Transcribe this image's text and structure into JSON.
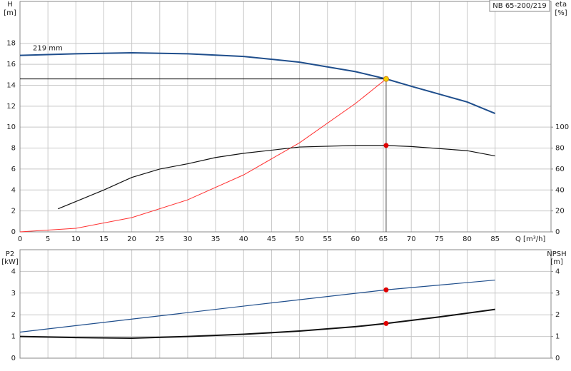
{
  "chart_data": [
    {
      "type": "line",
      "title": "NB 65-200/219",
      "y_label": "H",
      "y_unit": "[m]",
      "y2_label": "eta",
      "y2_unit": "[%]",
      "x_label": "Q [m³/h]",
      "xlim": [
        0,
        95
      ],
      "xticks": [
        0,
        5,
        10,
        15,
        20,
        25,
        30,
        35,
        40,
        45,
        50,
        55,
        60,
        65,
        70,
        75,
        80,
        85
      ],
      "ylim": [
        0,
        22
      ],
      "yticks": [
        0,
        2,
        4,
        6,
        8,
        10,
        12,
        14,
        16,
        18
      ],
      "y2lim": [
        0,
        220
      ],
      "y2ticks": [
        0,
        20,
        40,
        60,
        80,
        100
      ],
      "grid": true,
      "show_xtick_labels": true,
      "series": [
        {
          "name": "219 mm",
          "color": "#1f4e8c",
          "width": 2,
          "axis": "y",
          "x": [
            0,
            10,
            20,
            30,
            40,
            50,
            60,
            65.5,
            70,
            80,
            85
          ],
          "values": [
            16.85,
            17.0,
            17.1,
            17.0,
            16.75,
            16.2,
            15.3,
            14.6,
            13.9,
            12.4,
            11.3
          ]
        },
        {
          "color": "#ff3030",
          "width": 1,
          "axis": "y",
          "x": [
            0,
            10,
            20,
            30,
            40,
            50,
            60,
            65.5
          ],
          "values": [
            0,
            0.34,
            1.36,
            3.06,
            5.44,
            8.5,
            12.25,
            14.6
          ]
        },
        {
          "color": "#111111",
          "width": 1.2,
          "axis": "y2",
          "x": [
            6.8,
            10,
            15,
            20,
            25,
            30,
            35,
            40,
            50,
            60,
            65.5,
            70,
            80,
            85
          ],
          "values": [
            22,
            29,
            40,
            52,
            60,
            65,
            71,
            75,
            81,
            82.5,
            82.5,
            81.5,
            77.5,
            72.5
          ]
        }
      ],
      "points": [
        {
          "x": 65.5,
          "y": 14.6,
          "color": "#f5d000",
          "axis": "y",
          "duty_lines": true
        },
        {
          "x": 65.5,
          "y": 82.5,
          "color": "#e00000",
          "axis": "y2"
        }
      ]
    },
    {
      "type": "line",
      "y_label": "P2",
      "y_unit": "[kW]",
      "y2_label": "NPSH",
      "y2_unit": "[m]",
      "xlim": [
        0,
        95
      ],
      "xticks": [
        0,
        5,
        10,
        15,
        20,
        25,
        30,
        35,
        40,
        45,
        50,
        55,
        60,
        65,
        70,
        75,
        80,
        85
      ],
      "ylim": [
        0,
        5
      ],
      "yticks": [
        0,
        1,
        2,
        3,
        4
      ],
      "y2lim": [
        0,
        5
      ],
      "y2ticks": [
        0,
        1,
        2,
        3,
        4
      ],
      "grid": true,
      "show_xtick_labels": false,
      "series": [
        {
          "color": "#1f4e8c",
          "width": 1.2,
          "axis": "y",
          "x": [
            0,
            20,
            40,
            65.5,
            85
          ],
          "values": [
            1.2,
            1.8,
            2.4,
            3.15,
            3.6
          ]
        },
        {
          "color": "#111111",
          "width": 2,
          "axis": "y2",
          "x": [
            0,
            10,
            20,
            30,
            40,
            50,
            60,
            65.5,
            75,
            85
          ],
          "values": [
            1.0,
            0.95,
            0.92,
            1.0,
            1.1,
            1.25,
            1.45,
            1.6,
            1.9,
            2.25
          ]
        }
      ],
      "points": [
        {
          "x": 65.5,
          "y": 3.15,
          "color": "#e00000",
          "axis": "y"
        },
        {
          "x": 65.5,
          "y": 1.6,
          "color": "#e00000",
          "axis": "y2"
        }
      ]
    }
  ]
}
